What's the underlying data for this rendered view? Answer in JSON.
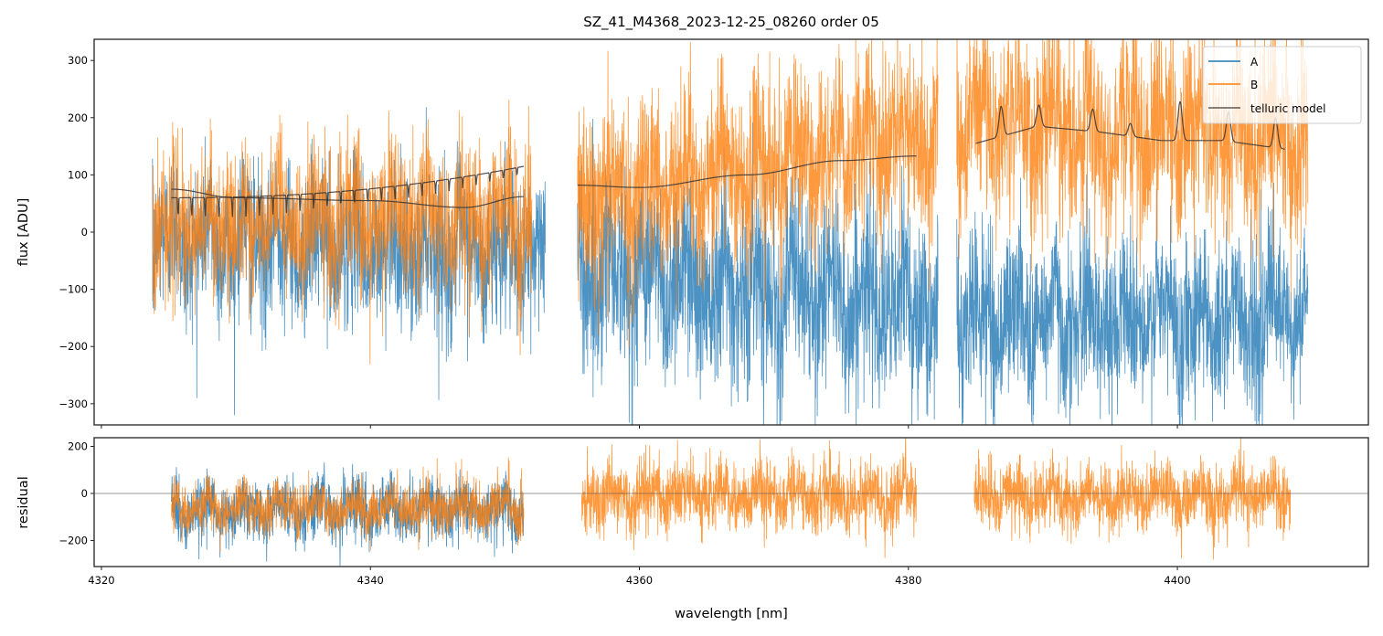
{
  "chart_data": [
    {
      "panel": "flux",
      "type": "line",
      "title": "SZ_41_M4368_2023-12-25_08260  order 05",
      "xlabel": "",
      "ylabel": "flux [ADU]",
      "xlim": [
        4319.46,
        4414.2
      ],
      "ylim": [
        -337,
        337
      ],
      "xticks": [
        4320,
        4340,
        4360,
        4380,
        4400
      ],
      "yticks": [
        300,
        200,
        100,
        0,
        -100,
        -200,
        -300
      ],
      "ytick_labels": [
        "300",
        "200",
        "100",
        "0",
        "−100",
        "−200",
        "−300"
      ],
      "grid": false,
      "legend": {
        "placement": "top-right",
        "entries": [
          {
            "label": "A",
            "color": "#1f77b4"
          },
          {
            "label": "B",
            "color": "#ff7f0e"
          },
          {
            "label": "telluric model",
            "color": "#333333"
          }
        ]
      },
      "series": [
        {
          "name": "A",
          "color": "#1f77b4",
          "segments": [
            {
              "x_range": [
                4323.8,
                4353.0
              ],
              "mean": [
                -10,
                -40
              ],
              "spread": 90
            },
            {
              "x_range": [
                4355.4,
                4382.2
              ],
              "mean": [
                -60,
                -130
              ],
              "spread": 110
            },
            {
              "x_range": [
                4383.6,
                4409.7
              ],
              "mean": [
                -150,
                -150
              ],
              "spread": 95
            }
          ]
        },
        {
          "name": "B",
          "color": "#ff7f0e",
          "segments": [
            {
              "x_range": [
                4323.8,
                4352.0
              ],
              "mean": [
                10,
                30
              ],
              "spread": 85
            },
            {
              "x_range": [
                4355.4,
                4382.2
              ],
              "mean": [
                60,
                170
              ],
              "spread": 100
            },
            {
              "x_range": [
                4383.6,
                4409.7
              ],
              "mean": [
                200,
                160
              ],
              "spread": 110
            }
          ]
        },
        {
          "name": "telluric model",
          "color": "#333333",
          "segments": [
            {
              "type": "comb",
              "x_range": [
                4325.2,
                4351.4
              ],
              "baseline": [
                60,
                115
              ],
              "dips": 26,
              "dip_depth": 40
            },
            {
              "type": "smooth",
              "x_range": [
                4325.2,
                4351.4
              ],
              "points": [
                [
                  4325.2,
                  75
                ],
                [
                  4330,
                  60
                ],
                [
                  4340,
                  55
                ],
                [
                  4347,
                  43
                ],
                [
                  4351.4,
                  62
                ]
              ]
            },
            {
              "type": "smooth",
              "x_range": [
                4355.4,
                4380.6
              ],
              "points": [
                [
                  4355.4,
                  82
                ],
                [
                  4360,
                  78
                ],
                [
                  4368,
                  100
                ],
                [
                  4375,
                  125
                ],
                [
                  4380.6,
                  133
                ]
              ]
            },
            {
              "type": "peaks",
              "x_range": [
                4385.0,
                4408.0
              ],
              "baseline": [
                155,
                185,
                175,
                160,
                160,
                145
              ],
              "peaks": [
                [
                  4386.9,
                  220
                ],
                [
                  4389.7,
                  222
                ],
                [
                  4393.7,
                  215
                ],
                [
                  4396.5,
                  190
                ],
                [
                  4400.2,
                  228
                ],
                [
                  4403.8,
                  210
                ],
                [
                  4407.3,
                  200
                ]
              ]
            }
          ]
        }
      ]
    },
    {
      "panel": "residual",
      "type": "line",
      "xlabel": "wavelength [nm]",
      "ylabel": "residual",
      "xlim": [
        4319.46,
        4414.2
      ],
      "ylim": [
        -311,
        237
      ],
      "xticks": [
        4320,
        4340,
        4360,
        4380,
        4400
      ],
      "xtick_labels": [
        "4320",
        "4340",
        "4360",
        "4380",
        "4400"
      ],
      "yticks": [
        200,
        0,
        -200
      ],
      "ytick_labels": [
        "200",
        "0",
        "−200"
      ],
      "hline": 0,
      "series": [
        {
          "name": "A",
          "color": "#1f77b4",
          "segments": [
            {
              "x_range": [
                4325.2,
                4351.4
              ],
              "mean": -70,
              "spread": 85
            }
          ]
        },
        {
          "name": "B",
          "color": "#ff7f0e",
          "segments": [
            {
              "x_range": [
                4325.2,
                4351.4
              ],
              "mean": -60,
              "spread": 75
            },
            {
              "x_range": [
                4355.7,
                4380.6
              ],
              "mean": -10,
              "spread": 95
            },
            {
              "x_range": [
                4384.9,
                4408.4
              ],
              "mean": -10,
              "spread": 95
            }
          ]
        }
      ]
    }
  ]
}
